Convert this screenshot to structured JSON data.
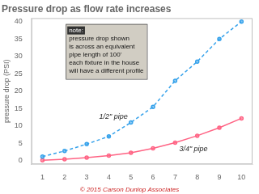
{
  "chart_data": {
    "type": "line",
    "title": "Pressure drop as flow rate increases",
    "ylabel": "pressure drop (PSI)",
    "x": [
      1,
      2,
      3,
      4,
      5,
      6,
      7,
      8,
      9,
      10
    ],
    "series": [
      {
        "name": "1/2\" pipe",
        "values": [
          1.2,
          2.8,
          4.8,
          7.0,
          11.0,
          15.5,
          23.0,
          28.5,
          35.0,
          40.0
        ],
        "line_style": "dashed",
        "marker": "dot"
      },
      {
        "name": "3/4\" pipe",
        "values": [
          0.15,
          0.45,
          0.9,
          1.5,
          2.3,
          3.6,
          5.2,
          7.2,
          9.5,
          12.2
        ],
        "line_style": "solid",
        "marker": "dot"
      }
    ],
    "xlim": [
      0.5,
      10.5
    ],
    "ylim": [
      -1,
      41
    ],
    "xticks": [
      1,
      2,
      3,
      4,
      5,
      6,
      7,
      8,
      9,
      10
    ],
    "yticks": [
      0,
      5,
      10,
      15,
      20,
      25,
      30,
      35,
      40
    ],
    "grid": false,
    "annotations": [
      "note:",
      "pressure drop shown",
      "is across an equivalent",
      "pipe length of 100'",
      "each fixture in the house",
      "will have a different profile"
    ],
    "credit": "© 2015 Carson Dunlop Associates"
  }
}
